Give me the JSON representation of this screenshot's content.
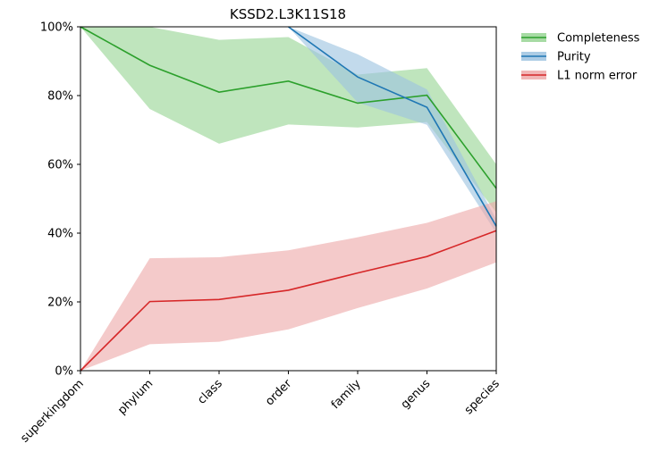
{
  "chart_data": {
    "type": "line",
    "title": "KSSD2.L3K11S18",
    "xlabel": "",
    "ylabel": "",
    "categories": [
      "superkingdom",
      "phylum",
      "class",
      "order",
      "family",
      "genus",
      "species"
    ],
    "ylim": [
      0,
      100
    ],
    "yticks": [
      0,
      20,
      40,
      60,
      80,
      100
    ],
    "ytick_labels": [
      "0%",
      "20%",
      "40%",
      "60%",
      "80%",
      "100%"
    ],
    "grid": false,
    "legend_position": "outside top-right",
    "series": [
      {
        "name": "Completeness",
        "color": "#2ca02c",
        "band_color": "#98d594",
        "values": [
          100,
          88.8,
          81.0,
          84.2,
          77.8,
          80.1,
          53.0
        ],
        "lower": [
          100,
          76.1,
          66.0,
          71.6,
          70.7,
          72.3,
          46.0
        ],
        "upper": [
          100,
          100,
          96.2,
          97.0,
          86.1,
          88.0,
          60.0
        ]
      },
      {
        "name": "Purity",
        "color": "#1f77b4",
        "band_color": "#9dc3e1",
        "values": [
          null,
          null,
          null,
          100,
          85.4,
          76.6,
          42.0
        ],
        "lower": [
          null,
          null,
          null,
          100,
          78.0,
          71.5,
          40.0
        ],
        "upper": [
          null,
          null,
          null,
          100,
          92.0,
          81.8,
          44.0
        ]
      },
      {
        "name": "L1 norm error",
        "color": "#d62728",
        "band_color": "#eea9aa",
        "values": [
          0,
          20.1,
          20.7,
          23.4,
          28.4,
          33.2,
          40.7
        ],
        "lower": [
          0,
          7.7,
          8.4,
          12.0,
          18.2,
          23.9,
          31.5
        ],
        "upper": [
          0,
          32.7,
          33.0,
          35.0,
          38.8,
          43.0,
          49.3
        ]
      }
    ]
  }
}
